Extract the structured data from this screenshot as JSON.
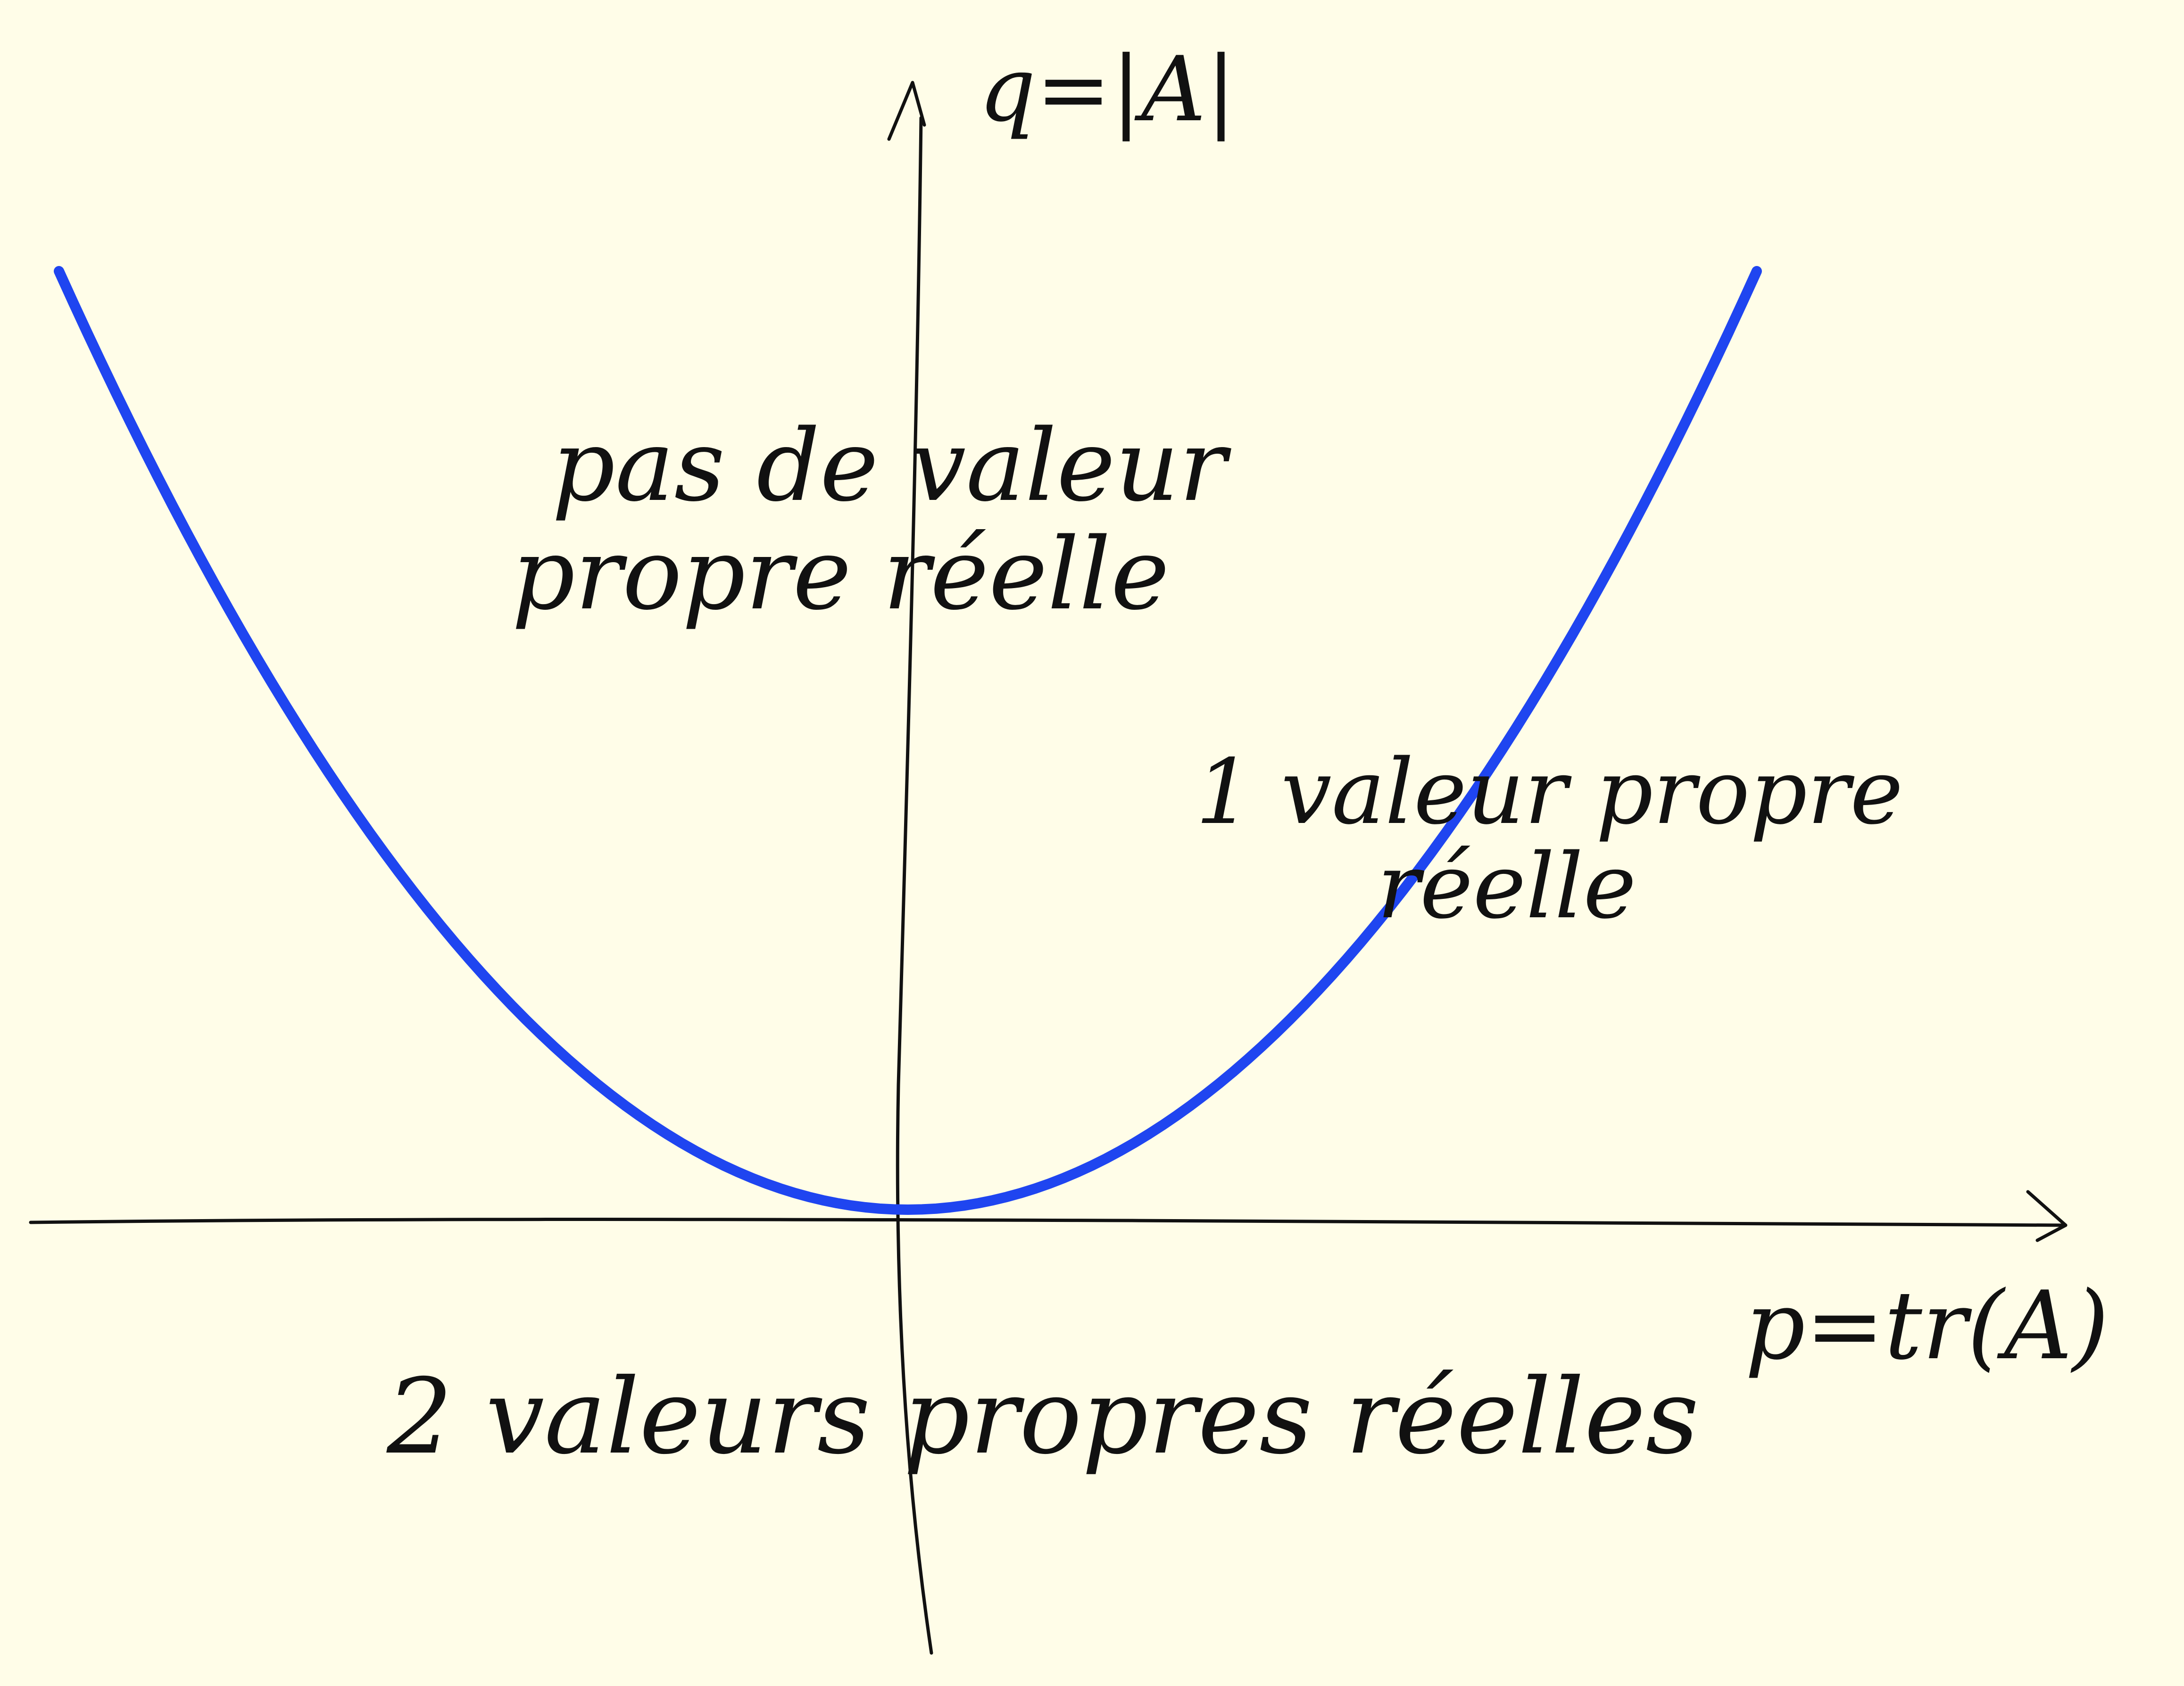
{
  "colors": {
    "background": "#FFFDE8",
    "ink": "#111111",
    "curve": "#1F45F0"
  },
  "axes": {
    "y_label": "q=|A|",
    "x_label": "p=tr(A)"
  },
  "regions": {
    "none": {
      "line1": "pas de valeur",
      "line2": "propre réelle"
    },
    "one": {
      "line1": "1 valeur propre",
      "line2": "réelle"
    },
    "two": {
      "line1": "2 valeurs propres réelles"
    }
  },
  "curve": {
    "equation": "q = p²/4"
  }
}
